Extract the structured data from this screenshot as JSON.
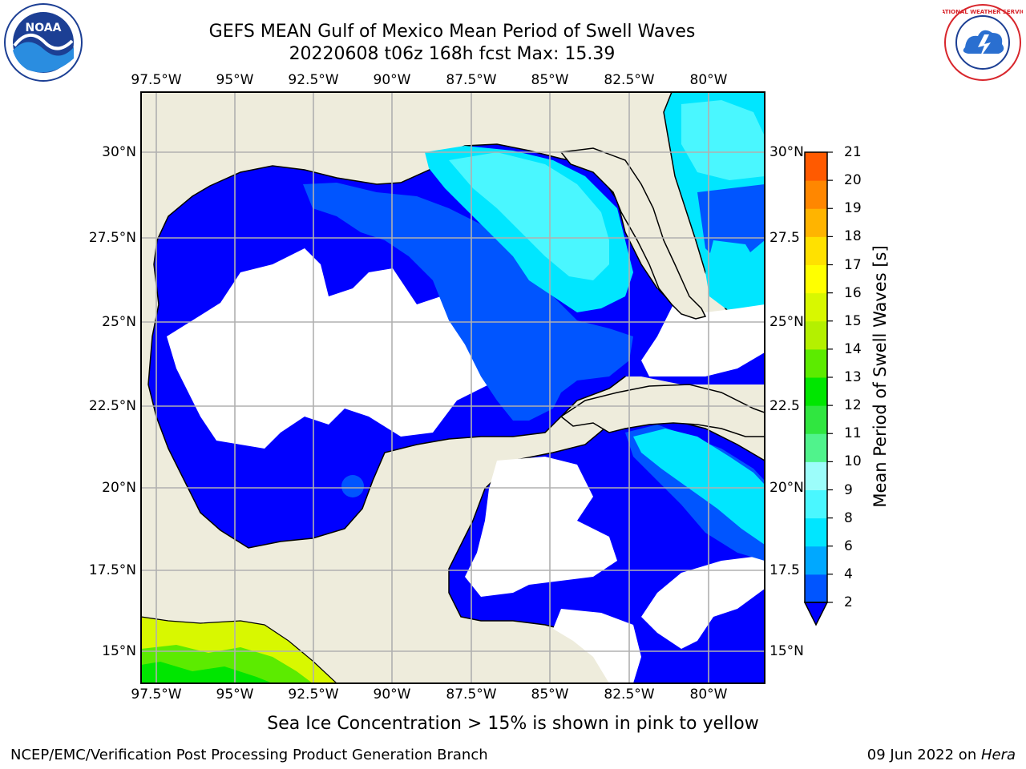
{
  "title": {
    "line1": "GEFS MEAN Gulf of Mexico Mean Period of Swell Waves",
    "line2": "20220608 t06z 168h fcst   Max: 15.39"
  },
  "logos": {
    "left": "noaa-logo",
    "left_text": "NOAA",
    "right": "nws-logo",
    "right_text": "NATIONAL WEATHER SERVICE"
  },
  "map": {
    "lon_ticks": [
      "97.5°W",
      "95°W",
      "92.5°W",
      "90°W",
      "87.5°W",
      "85°W",
      "82.5°W",
      "80°W"
    ],
    "lat_ticks_left": [
      "30°N",
      "27.5°N",
      "25°N",
      "22.5°N",
      "20°N",
      "17.5°N",
      "15°N"
    ],
    "lat_ticks_right": [
      "30°N",
      "27.5",
      "25°N",
      "22.5",
      "20°N",
      "17.5",
      "15°N"
    ],
    "lon_range": [
      -98,
      -78
    ],
    "lat_range": [
      14,
      32
    ],
    "land_color": "#eeecdc",
    "grid_color": "#b0b0b0"
  },
  "colorbar": {
    "title": "Mean Period of Swell Waves [s]",
    "levels": [
      "2",
      "4",
      "6",
      "8",
      "9",
      "10",
      "11",
      "12",
      "13",
      "14",
      "15",
      "16",
      "17",
      "18",
      "19",
      "20",
      "21"
    ],
    "colors": [
      "#0055ff",
      "#00a8ff",
      "#00e6ff",
      "#4af7ff",
      "#9cfdfa",
      "#50f38c",
      "#30e640",
      "#00e600",
      "#5ceb00",
      "#b4f000",
      "#d8f800",
      "#ffff00",
      "#ffe100",
      "#ffb400",
      "#ff8700",
      "#ff5a00",
      "#ff2400",
      "#ff0000"
    ],
    "extend_color": "#0000ff"
  },
  "note": "Sea Ice Concentration > 15% is shown in pink to yellow",
  "footer": {
    "left": "NCEP/EMC/Verification Post Processing Product Generation Branch",
    "right_date": "09 Jun 2022 on ",
    "right_host": "Hera"
  }
}
